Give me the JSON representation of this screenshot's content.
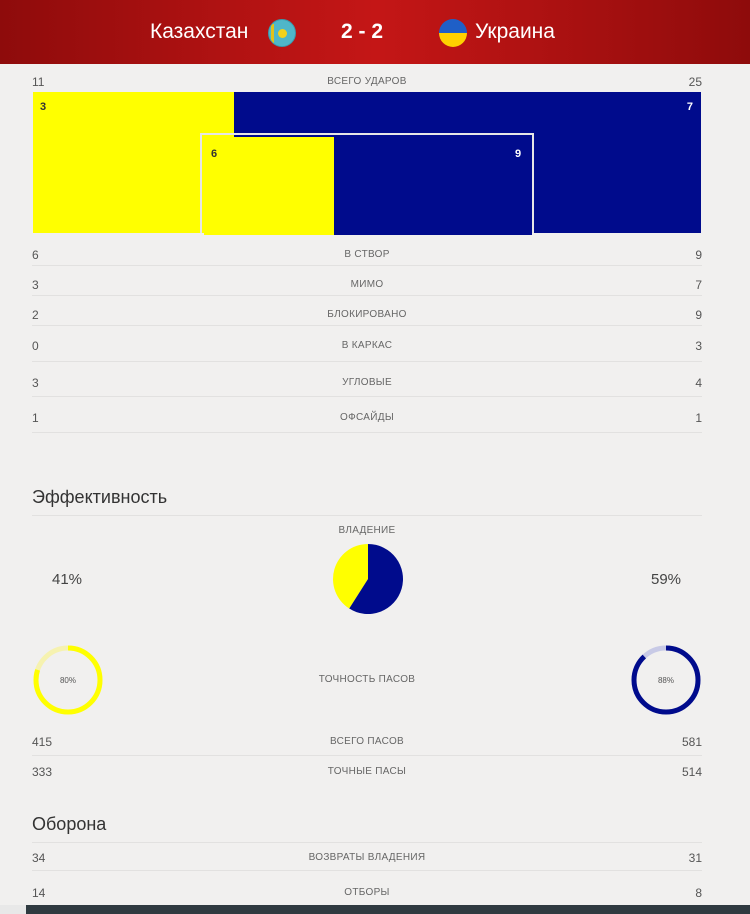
{
  "header": {
    "team_home": "Казахстан",
    "score": "2 - 2",
    "team_away": "Украина",
    "home_flag_icon": "kazakhstan-flag-icon",
    "away_flag_icon": "ukraine-flag-icon"
  },
  "colors": {
    "home": "#ffff00",
    "away": "#000b8c",
    "header": "#b01212"
  },
  "shots": {
    "total": {
      "label": "ВСЕГО УДАРОВ",
      "home": "11",
      "away": "25"
    },
    "bar_outer": {
      "home": "3",
      "away": "7"
    },
    "bar_inner": {
      "home": "6",
      "away": "9"
    }
  },
  "stats": [
    {
      "label": "В СТВОР",
      "home": "6",
      "away": "9"
    },
    {
      "label": "МИМО",
      "home": "3",
      "away": "7"
    },
    {
      "label": "БЛОКИРОВАНО",
      "home": "2",
      "away": "9"
    },
    {
      "label": "В КАРКАС",
      "home": "0",
      "away": "3"
    },
    {
      "label": "УГЛОВЫЕ",
      "home": "3",
      "away": "4"
    },
    {
      "label": "ОФСАЙДЫ",
      "home": "1",
      "away": "1"
    }
  ],
  "efficiency": {
    "title": "Эффективность",
    "possession": {
      "label": "ВЛАДЕНИЕ",
      "home_text": "41%",
      "away_text": "59%",
      "home_fraction": 0.41,
      "away_fraction": 0.59
    },
    "pass_accuracy": {
      "label": "ТОЧНОСТЬ ПАСОВ",
      "home_text": "80%",
      "away_text": "88%",
      "home_fraction": 0.8,
      "away_fraction": 0.88
    },
    "rows": [
      {
        "label": "ВСЕГО ПАСОВ",
        "home": "415",
        "away": "581"
      },
      {
        "label": "ТОЧНЫЕ ПАСЫ",
        "home": "333",
        "away": "514"
      }
    ]
  },
  "defense": {
    "title": "Оборона",
    "rows": [
      {
        "label": "ВОЗВРАТЫ ВЛАДЕНИЯ",
        "home": "34",
        "away": "31"
      },
      {
        "label": "ОТБОРЫ",
        "home": "14",
        "away": "8"
      }
    ]
  }
}
